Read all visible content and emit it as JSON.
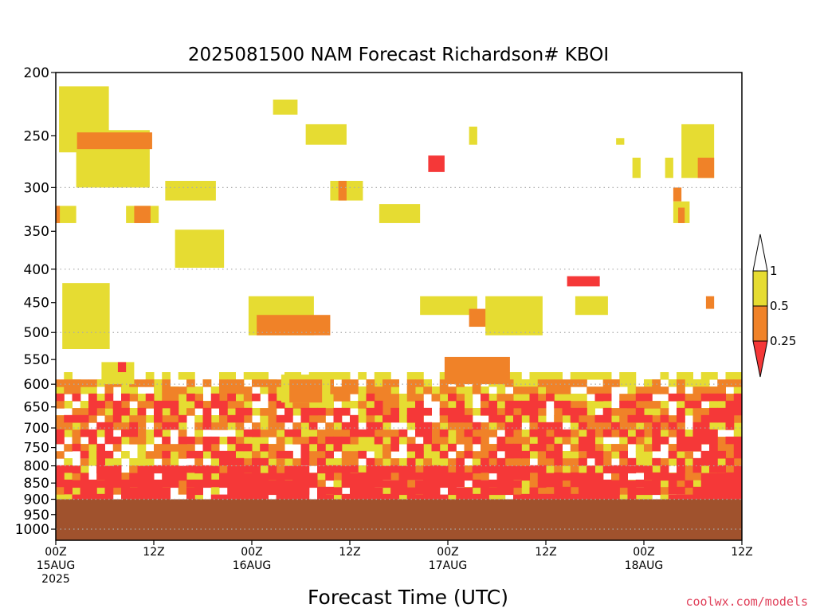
{
  "chart_data": {
    "type": "heatmap",
    "title": "2025081500 NAM Forecast Richardson# KBOI",
    "xlabel": "Forecast Time (UTC)",
    "ylabel": "",
    "x_range_hours": [
      0,
      84
    ],
    "y_scale": "log",
    "y_range": [
      200,
      1040
    ],
    "y_ticks": [
      "200",
      "250",
      "300",
      "350",
      "400",
      "450",
      "500",
      "550",
      "600",
      "650",
      "700",
      "750",
      "800",
      "850",
      "900",
      "950",
      "1000"
    ],
    "dotted_grid_levels": [
      300,
      400,
      500,
      600,
      700,
      800,
      900,
      1000
    ],
    "x_ticks": [
      {
        "hour": 0,
        "labels": [
          "00Z",
          "15AUG",
          "2025"
        ]
      },
      {
        "hour": 12,
        "labels": [
          "12Z"
        ]
      },
      {
        "hour": 24,
        "labels": [
          "00Z",
          "16AUG"
        ]
      },
      {
        "hour": 36,
        "labels": [
          "12Z"
        ]
      },
      {
        "hour": 48,
        "labels": [
          "00Z",
          "17AUG"
        ]
      },
      {
        "hour": 60,
        "labels": [
          "12Z"
        ]
      },
      {
        "hour": 72,
        "labels": [
          "00Z",
          "18AUG"
        ]
      },
      {
        "hour": 84,
        "labels": [
          "12Z"
        ]
      }
    ],
    "legend": {
      "placement": "right",
      "levels": [
        "1",
        "0.5",
        "0.25"
      ],
      "colors": {
        "le_0_25": "#f53838",
        "r0_25_0_5": "#f08228",
        "r0_5_1": "#e6dc32",
        "gt_1": "#ffffff"
      }
    },
    "ground": {
      "pressure_top": 900,
      "color": "#a0522d"
    },
    "colors": {
      "red": "#f53838",
      "orange": "#f08228",
      "yellow": "#e6dc32"
    },
    "regions": [
      {
        "level": "yellow",
        "h": [
          0.4,
          6.5
        ],
        "p": [
          210,
          265
        ]
      },
      {
        "level": "yellow",
        "h": [
          2.5,
          11.5
        ],
        "p": [
          245,
          300
        ]
      },
      {
        "level": "orange",
        "h": [
          2.6,
          11.8
        ],
        "p": [
          247,
          262
        ]
      },
      {
        "level": "yellow",
        "h": [
          13.4,
          19.6
        ],
        "p": [
          293,
          314
        ]
      },
      {
        "level": "yellow",
        "h": [
          0.0,
          2.5
        ],
        "p": [
          320,
          340
        ]
      },
      {
        "level": "orange",
        "h": [
          0.0,
          0.5
        ],
        "p": [
          320,
          340
        ]
      },
      {
        "level": "yellow",
        "h": [
          8.6,
          12.6
        ],
        "p": [
          320,
          340
        ]
      },
      {
        "level": "orange",
        "h": [
          9.6,
          11.6
        ],
        "p": [
          320,
          340
        ]
      },
      {
        "level": "yellow",
        "h": [
          14.6,
          20.6
        ],
        "p": [
          348,
          398
        ]
      },
      {
        "level": "yellow",
        "h": [
          26.6,
          29.6
        ],
        "p": [
          220,
          232
        ]
      },
      {
        "level": "yellow",
        "h": [
          30.6,
          35.6
        ],
        "p": [
          240,
          258
        ]
      },
      {
        "level": "yellow",
        "h": [
          33.6,
          37.6
        ],
        "p": [
          293,
          314
        ]
      },
      {
        "level": "orange",
        "h": [
          34.6,
          35.6
        ],
        "p": [
          293,
          314
        ]
      },
      {
        "level": "yellow",
        "h": [
          39.6,
          44.6
        ],
        "p": [
          318,
          340
        ]
      },
      {
        "level": "red",
        "h": [
          45.6,
          47.6
        ],
        "p": [
          268,
          284
        ]
      },
      {
        "level": "yellow",
        "h": [
          50.6,
          51.6
        ],
        "p": [
          242,
          258
        ]
      },
      {
        "level": "yellow",
        "h": [
          68.6,
          69.6
        ],
        "p": [
          252,
          258
        ]
      },
      {
        "level": "yellow",
        "h": [
          70.6,
          71.6
        ],
        "p": [
          270,
          290
        ]
      },
      {
        "level": "yellow",
        "h": [
          74.6,
          75.6
        ],
        "p": [
          270,
          290
        ]
      },
      {
        "level": "yellow",
        "h": [
          76.6,
          80.6
        ],
        "p": [
          240,
          290
        ]
      },
      {
        "level": "orange",
        "h": [
          78.6,
          80.6
        ],
        "p": [
          270,
          290
        ]
      },
      {
        "level": "orange",
        "h": [
          75.6,
          76.6
        ],
        "p": [
          300,
          315
        ]
      },
      {
        "level": "yellow",
        "h": [
          75.6,
          77.6
        ],
        "p": [
          315,
          340
        ]
      },
      {
        "level": "orange",
        "h": [
          76.2,
          77.0
        ],
        "p": [
          322,
          340
        ]
      },
      {
        "level": "yellow",
        "h": [
          0.8,
          6.6
        ],
        "p": [
          420,
          530
        ]
      },
      {
        "level": "yellow",
        "h": [
          23.6,
          31.6
        ],
        "p": [
          440,
          505
        ]
      },
      {
        "level": "orange",
        "h": [
          24.6,
          33.6
        ],
        "p": [
          470,
          505
        ]
      },
      {
        "level": "yellow",
        "h": [
          44.6,
          51.6
        ],
        "p": [
          440,
          470
        ]
      },
      {
        "level": "orange",
        "h": [
          50.6,
          55.6
        ],
        "p": [
          460,
          490
        ]
      },
      {
        "level": "yellow",
        "h": [
          52.6,
          59.6
        ],
        "p": [
          440,
          505
        ]
      },
      {
        "level": "red",
        "h": [
          62.6,
          66.6
        ],
        "p": [
          410,
          425
        ]
      },
      {
        "level": "yellow",
        "h": [
          63.6,
          67.6
        ],
        "p": [
          440,
          470
        ]
      },
      {
        "level": "orange",
        "h": [
          79.6,
          80.6
        ],
        "p": [
          440,
          460
        ]
      },
      {
        "level": "yellow",
        "h": [
          0.0,
          84.0
        ],
        "p": [
          575,
          895
        ],
        "fill": 0.55
      },
      {
        "level": "orange",
        "h": [
          0.0,
          84.0
        ],
        "p": [
          590,
          880
        ],
        "fill": 0.45
      },
      {
        "level": "red",
        "h": [
          0.0,
          84.0
        ],
        "p": [
          620,
          895
        ],
        "fill": 0.35
      },
      {
        "level": "orange",
        "h": [
          47.6,
          55.6
        ],
        "p": [
          545,
          600
        ]
      },
      {
        "level": "yellow",
        "h": [
          27.6,
          33.6
        ],
        "p": [
          580,
          640
        ]
      },
      {
        "level": "orange",
        "h": [
          28.6,
          32.6
        ],
        "p": [
          590,
          640
        ]
      },
      {
        "level": "yellow",
        "h": [
          5.6,
          9.6
        ],
        "p": [
          555,
          600
        ]
      },
      {
        "level": "red",
        "h": [
          7.6,
          8.6
        ],
        "p": [
          555,
          575
        ]
      },
      {
        "level": "red",
        "h": [
          2.0,
          84.0
        ],
        "p": [
          800,
          898
        ],
        "fill": 0.6
      }
    ]
  },
  "credit": "coolwx.com/models"
}
